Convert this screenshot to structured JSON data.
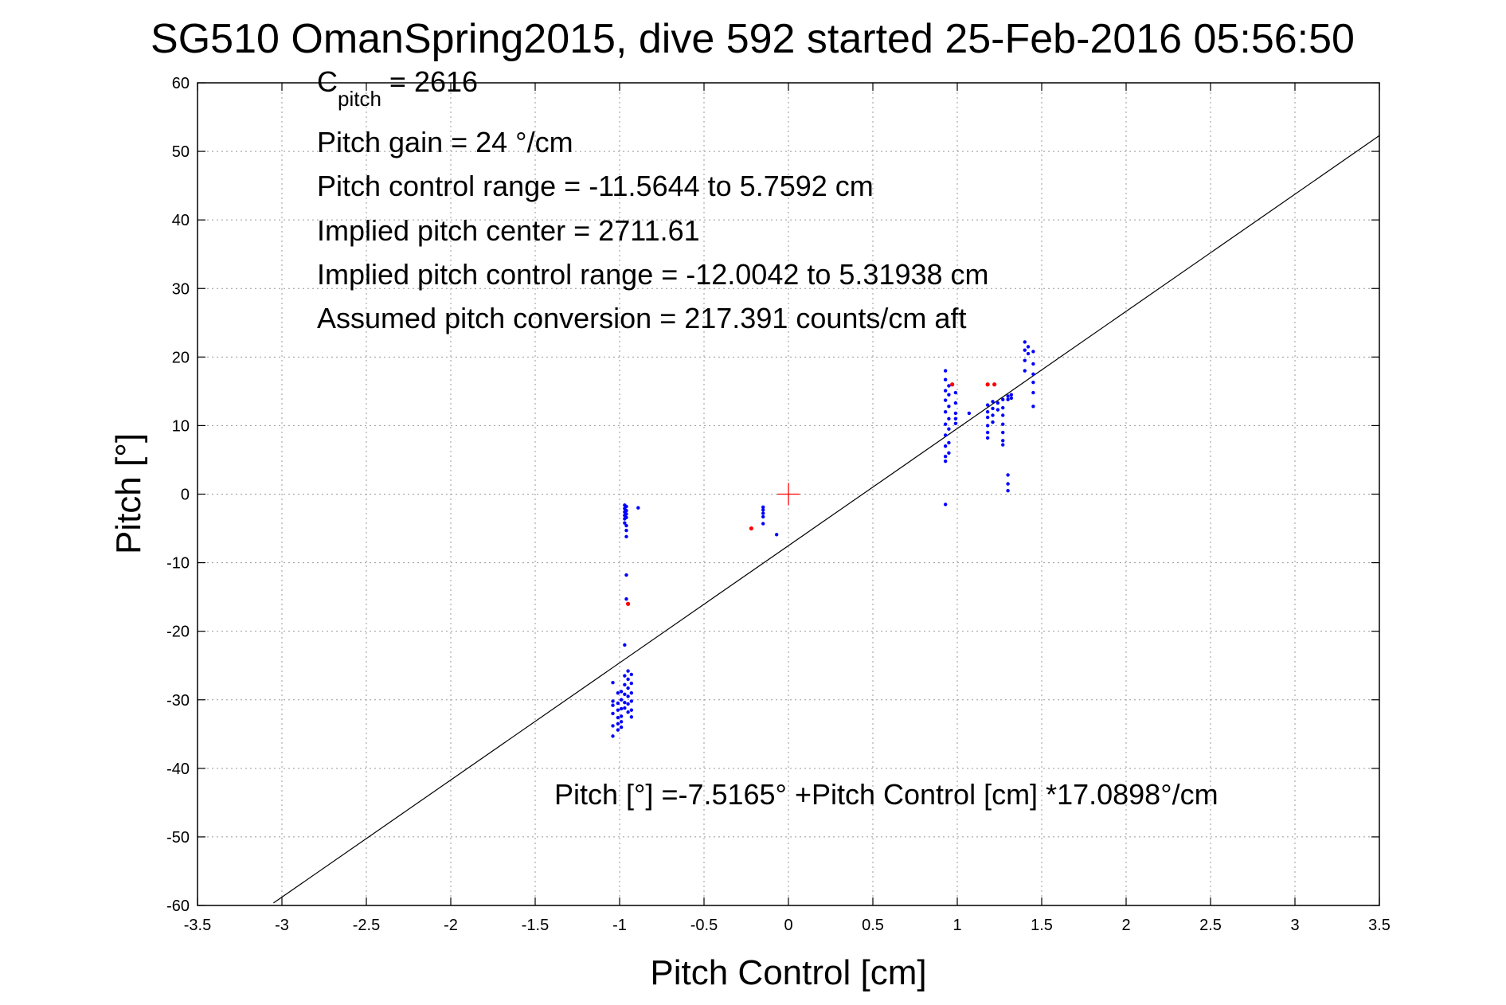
{
  "chart_data": {
    "type": "scatter",
    "title": "SG510 OmanSpring2015, dive 592 started 25-Feb-2016 05:56:50",
    "xlabel": "Pitch Control [cm]",
    "ylabel": "Pitch [°]",
    "xlim": [
      -3.5,
      3.5
    ],
    "ylim": [
      -60,
      60
    ],
    "grid": true,
    "xticks": [
      -3.5,
      -3,
      -2.5,
      -2,
      -1.5,
      -1,
      -0.5,
      0,
      0.5,
      1,
      1.5,
      2,
      2.5,
      3,
      3.5
    ],
    "xtick_labels": [
      "-3.5",
      "-3",
      "-2.5",
      "-2",
      "-1.5",
      "-1",
      "-0.5",
      "0",
      "0.5",
      "1",
      "1.5",
      "2",
      "2.5",
      "3",
      "3.5"
    ],
    "yticks": [
      60,
      50,
      40,
      30,
      20,
      10,
      0,
      -10,
      -20,
      -30,
      -40,
      -50,
      -60
    ],
    "ytick_labels": [
      "60",
      "50",
      "40",
      "30",
      "20",
      "10",
      "0",
      "-10",
      "-20",
      "-30",
      "-40",
      "-50",
      "-60"
    ],
    "colors": {
      "points": "#0000ff",
      "outliers": "#ff0000",
      "center_marker": "#ff0000",
      "fit_line": "#000000",
      "grid": "#999999"
    },
    "annotations": {
      "c_pitch_main": "C",
      "c_pitch_sub": "pitch",
      "c_pitch_value": " = 2616",
      "pitch_gain": "Pitch gain = 24 °/cm",
      "pitch_control_range": "Pitch control range = -11.5644 to 5.7592 cm",
      "implied_pitch_center": "Implied pitch center = 2711.61",
      "implied_pitch_control_range": "Implied pitch control range = -12.0042 to 5.31938 cm",
      "assumed_pitch_conversion": "Assumed pitch conversion = 217.391 counts/cm aft",
      "fit_equation": "Pitch [°] =-7.5165° +Pitch Control [cm] *17.0898°/cm"
    },
    "fit_line": {
      "intercept": -7.5165,
      "slope": 17.0898,
      "x_range": [
        -3.05,
        3.5
      ]
    },
    "center_marker": {
      "x": 0,
      "y": 0
    },
    "series": [
      {
        "marker": "dot",
        "color": "#0000ff",
        "points": [
          [
            -1.04,
            -27.5
          ],
          [
            -1.04,
            -30.2
          ],
          [
            -1.04,
            -30.8
          ],
          [
            -1.04,
            -32.0
          ],
          [
            -1.04,
            -33.8
          ],
          [
            -1.04,
            -35.3
          ],
          [
            -1.01,
            -29.0
          ],
          [
            -1.01,
            -30.5
          ],
          [
            -1.01,
            -31.5
          ],
          [
            -1.01,
            -32.6
          ],
          [
            -1.01,
            -33.5
          ],
          [
            -1.01,
            -34.4
          ],
          [
            -0.99,
            -28.8
          ],
          [
            -0.99,
            -30.0
          ],
          [
            -0.99,
            -31.3
          ],
          [
            -0.99,
            -32.4
          ],
          [
            -0.99,
            -33.2
          ],
          [
            -0.99,
            -34.0
          ],
          [
            -0.97,
            -26.5
          ],
          [
            -0.97,
            -27.8
          ],
          [
            -0.97,
            -29.2
          ],
          [
            -0.97,
            -30.4
          ],
          [
            -0.97,
            -31.2
          ],
          [
            -0.95,
            -25.8
          ],
          [
            -0.95,
            -27.0
          ],
          [
            -0.95,
            -28.3
          ],
          [
            -0.95,
            -29.5
          ],
          [
            -0.95,
            -30.6
          ],
          [
            -0.95,
            -31.8
          ],
          [
            -0.93,
            -26.3
          ],
          [
            -0.93,
            -27.6
          ],
          [
            -0.93,
            -29.0
          ],
          [
            -0.93,
            -30.2
          ],
          [
            -0.93,
            -31.5
          ],
          [
            -0.93,
            -32.5
          ],
          [
            -0.97,
            -22.0
          ],
          [
            -0.96,
            -15.3
          ],
          [
            -0.96,
            -11.8
          ],
          [
            -0.97,
            -1.6
          ],
          [
            -0.97,
            -2.1
          ],
          [
            -0.97,
            -2.6
          ],
          [
            -0.97,
            -3.1
          ],
          [
            -0.97,
            -3.6
          ],
          [
            -0.97,
            -4.2
          ],
          [
            -0.96,
            -1.8
          ],
          [
            -0.96,
            -2.4
          ],
          [
            -0.96,
            -2.9
          ],
          [
            -0.96,
            -3.4
          ],
          [
            -0.96,
            -4.6
          ],
          [
            -0.96,
            -5.3
          ],
          [
            -0.96,
            -6.2
          ],
          [
            -0.89,
            -2.0
          ],
          [
            -0.15,
            -1.9
          ],
          [
            -0.15,
            -2.3
          ],
          [
            -0.15,
            -2.8
          ],
          [
            -0.15,
            -3.3
          ],
          [
            -0.15,
            -4.3
          ],
          [
            -0.07,
            -5.9
          ],
          [
            0.93,
            18.0
          ],
          [
            0.93,
            16.7
          ],
          [
            0.93,
            15.1
          ],
          [
            0.93,
            13.7
          ],
          [
            0.93,
            12.0
          ],
          [
            0.93,
            10.2
          ],
          [
            0.93,
            8.6
          ],
          [
            0.93,
            7.0
          ],
          [
            0.93,
            5.5
          ],
          [
            0.93,
            4.8
          ],
          [
            0.93,
            -1.5
          ],
          [
            0.95,
            15.8
          ],
          [
            0.95,
            14.5
          ],
          [
            0.95,
            12.8
          ],
          [
            0.95,
            11.0
          ],
          [
            0.95,
            9.5
          ],
          [
            0.95,
            7.5
          ],
          [
            0.95,
            6.0
          ],
          [
            0.99,
            14.8
          ],
          [
            0.99,
            13.3
          ],
          [
            0.99,
            11.8
          ],
          [
            0.99,
            11.0
          ],
          [
            0.99,
            10.3
          ],
          [
            1.07,
            11.8
          ],
          [
            1.18,
            13.0
          ],
          [
            1.18,
            12.0
          ],
          [
            1.18,
            11.2
          ],
          [
            1.18,
            10.0
          ],
          [
            1.18,
            9.0
          ],
          [
            1.18,
            8.2
          ],
          [
            1.21,
            13.5
          ],
          [
            1.21,
            12.5
          ],
          [
            1.21,
            11.5
          ],
          [
            1.21,
            10.5
          ],
          [
            1.24,
            13.3
          ],
          [
            1.24,
            12.3
          ],
          [
            1.27,
            13.8
          ],
          [
            1.27,
            12.6
          ],
          [
            1.27,
            11.5
          ],
          [
            1.27,
            10.2
          ],
          [
            1.27,
            9.0
          ],
          [
            1.27,
            7.8
          ],
          [
            1.27,
            7.2
          ],
          [
            1.3,
            14.3
          ],
          [
            1.3,
            13.8
          ],
          [
            1.32,
            14.5
          ],
          [
            1.32,
            14.0
          ],
          [
            1.3,
            2.8
          ],
          [
            1.3,
            1.5
          ],
          [
            1.3,
            0.5
          ],
          [
            1.4,
            22.2
          ],
          [
            1.4,
            21.0
          ],
          [
            1.4,
            19.5
          ],
          [
            1.4,
            18.0
          ],
          [
            1.42,
            21.5
          ],
          [
            1.42,
            20.5
          ],
          [
            1.45,
            20.8
          ],
          [
            1.45,
            19.0
          ],
          [
            1.45,
            17.5
          ],
          [
            1.45,
            16.3
          ],
          [
            1.45,
            14.8
          ],
          [
            1.45,
            12.8
          ]
        ]
      },
      {
        "marker": "dot",
        "color": "#ff0000",
        "points": [
          [
            -0.95,
            -16.0
          ],
          [
            -0.22,
            -5.0
          ],
          [
            0.97,
            16.0
          ],
          [
            1.18,
            16.0
          ],
          [
            1.22,
            16.0
          ]
        ]
      }
    ]
  }
}
